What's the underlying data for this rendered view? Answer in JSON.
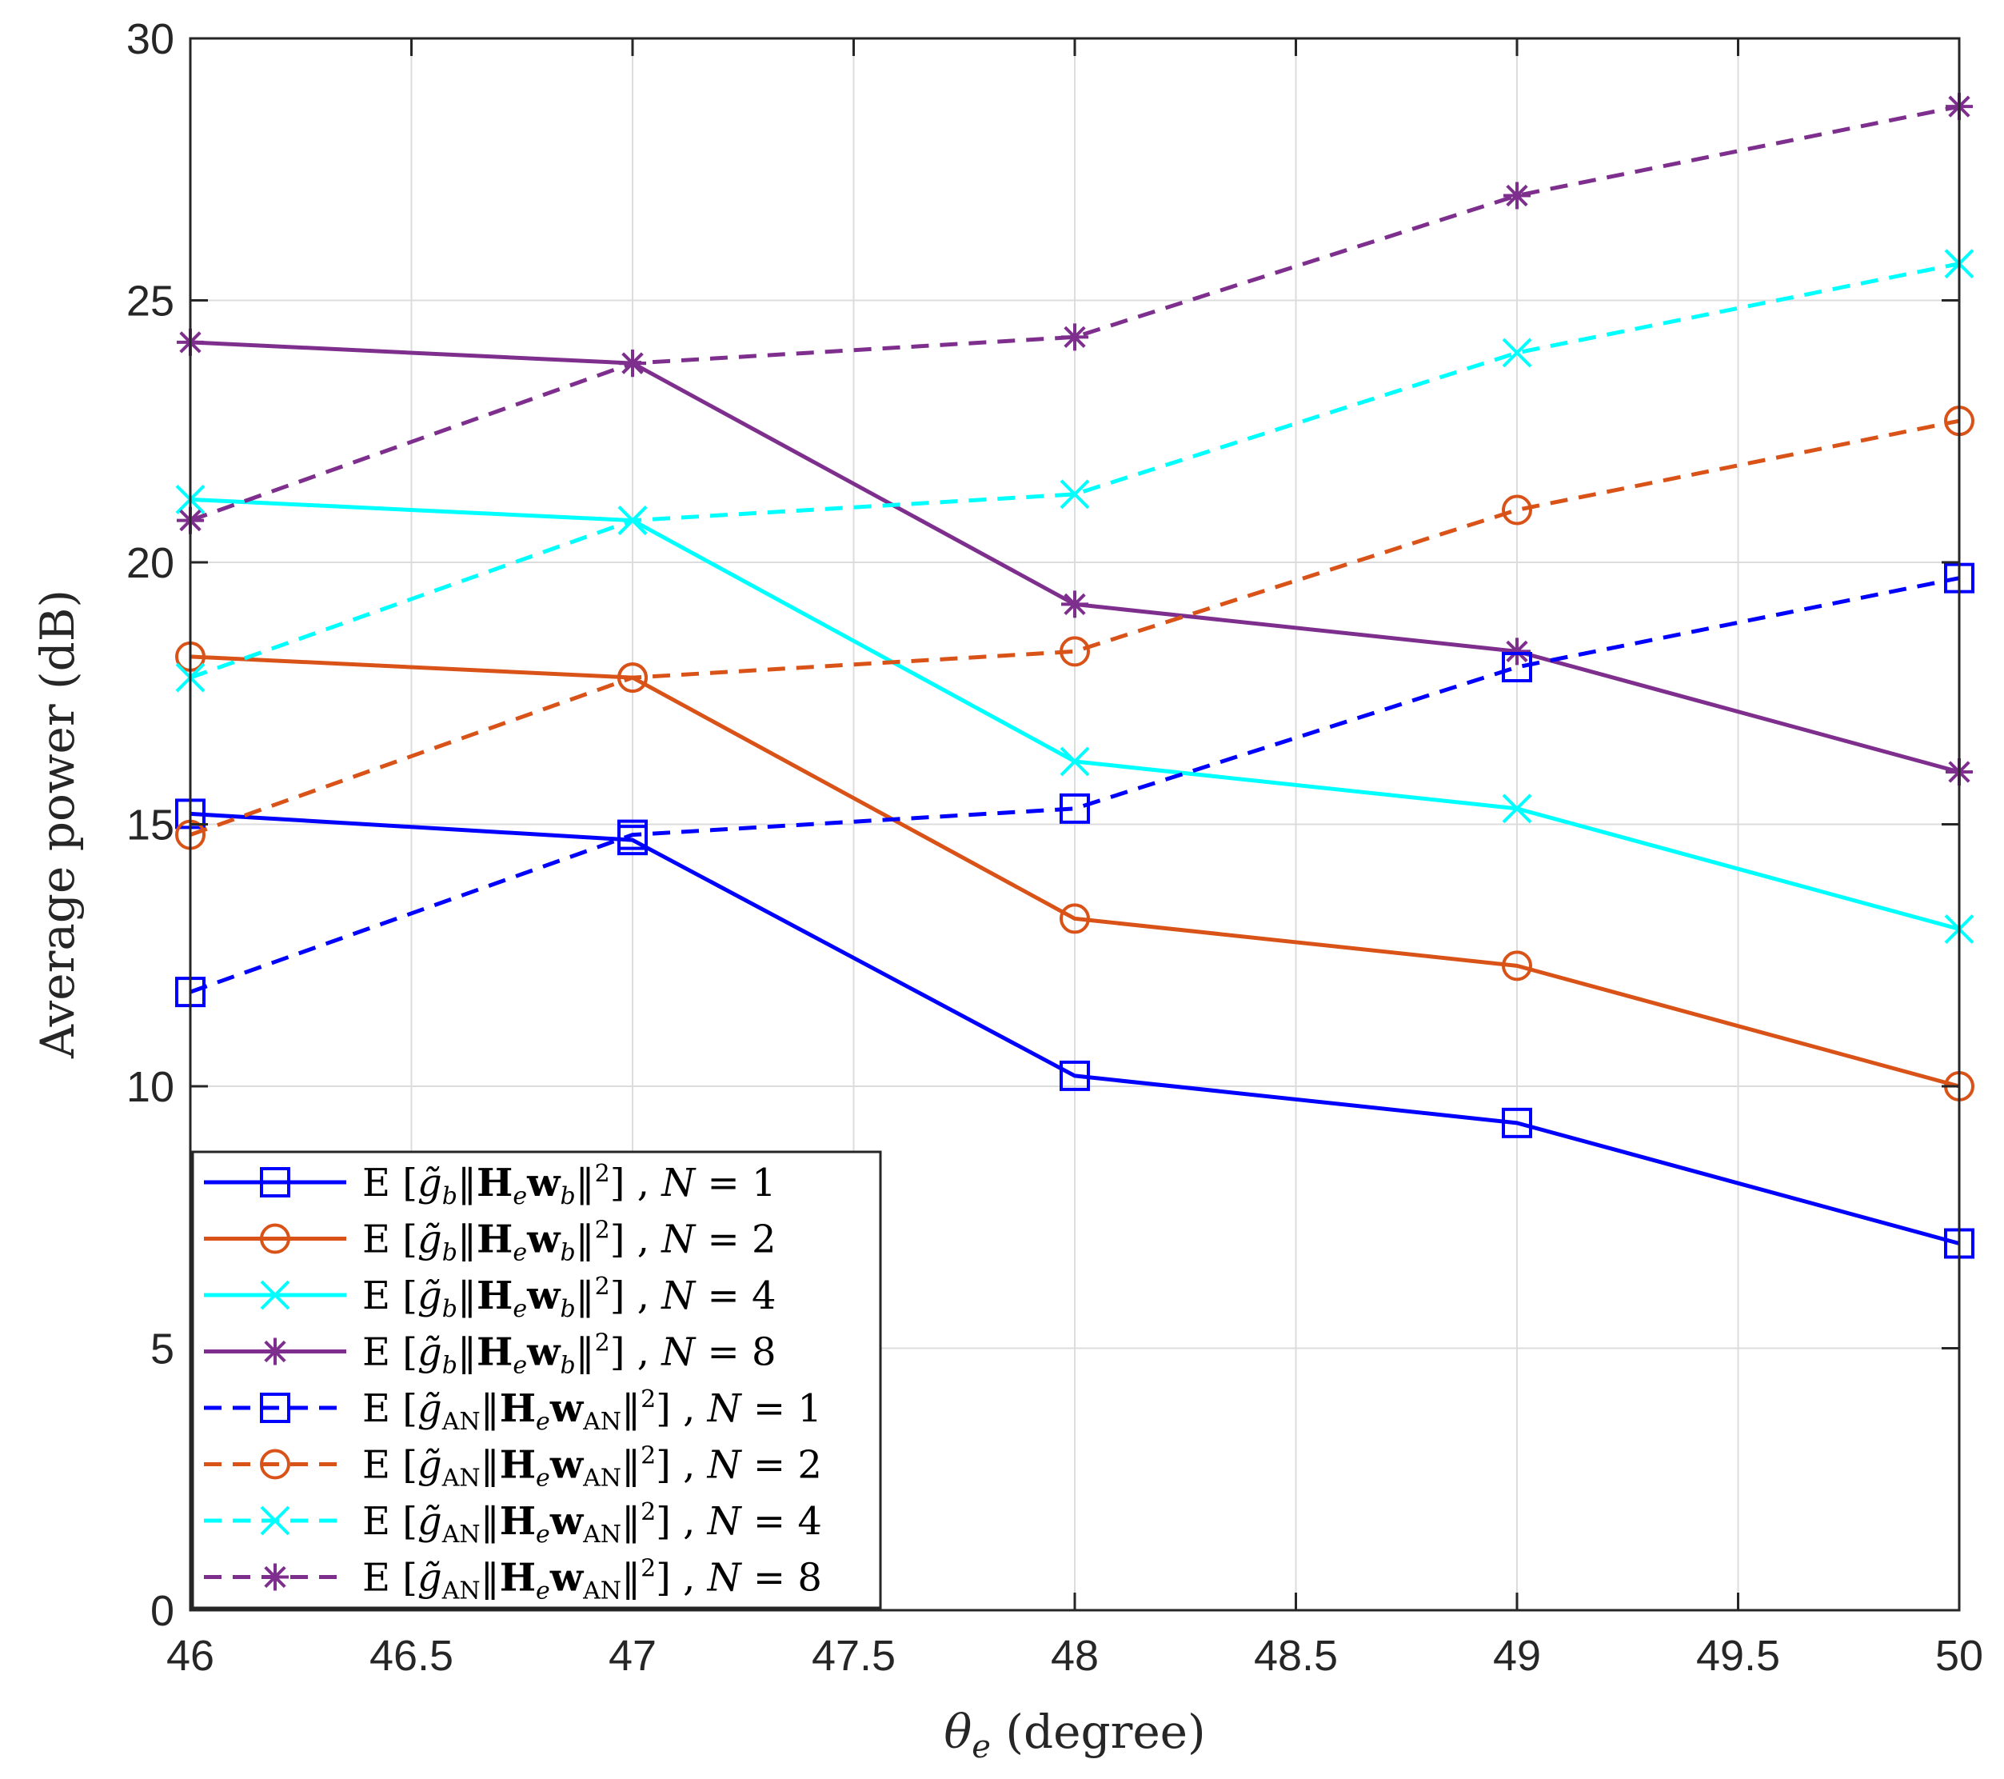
{
  "chart_data": {
    "type": "line",
    "title": "",
    "xlabel_symbol": "θ",
    "xlabel_subscript": "e",
    "xlabel_rest": " (degree)",
    "ylabel": "Average power (dB)",
    "xlim": [
      46,
      50
    ],
    "ylim": [
      0,
      30
    ],
    "x": [
      46,
      47,
      48,
      49,
      50
    ],
    "xticks": [
      46,
      46.5,
      47,
      47.5,
      48,
      48.5,
      49,
      49.5,
      50
    ],
    "xtick_labels": [
      "46",
      "46.5",
      "47",
      "47.5",
      "48",
      "48.5",
      "49",
      "49.5",
      "50"
    ],
    "yticks": [
      0,
      5,
      10,
      15,
      20,
      25,
      30
    ],
    "ytick_labels": [
      "0",
      "5",
      "10",
      "15",
      "20",
      "25",
      "30"
    ],
    "grid": true,
    "legend_position": "bottom-left",
    "series": [
      {
        "name": "E [g̃b‖He wb‖²] , N = 1",
        "sym": "b",
        "n": "1",
        "color": "#0000ff",
        "marker": "square",
        "dash": "solid",
        "values": [
          15.2,
          14.7,
          10.2,
          9.3,
          7.0
        ]
      },
      {
        "name": "E [g̃b‖He wb‖²] , N = 2",
        "sym": "b",
        "n": "2",
        "color": "#d95319",
        "marker": "circle",
        "dash": "solid",
        "values": [
          18.2,
          17.8,
          13.2,
          12.3,
          10.0
        ]
      },
      {
        "name": "E [g̃b‖He wb‖²] , N = 4",
        "sym": "b",
        "n": "4",
        "color": "#00ffff",
        "marker": "x",
        "dash": "solid",
        "values": [
          21.2,
          20.8,
          16.2,
          15.3,
          13.0
        ]
      },
      {
        "name": "E [g̃b‖He wb‖²] , N = 8",
        "sym": "b",
        "n": "8",
        "color": "#7e2f8e",
        "marker": "star",
        "dash": "solid",
        "values": [
          24.2,
          23.8,
          19.2,
          18.3,
          16.0
        ]
      },
      {
        "name": "E [g̃AN‖He wAN‖²] , N = 1",
        "sym": "AN",
        "n": "1",
        "color": "#0000ff",
        "marker": "square",
        "dash": "dashed",
        "values": [
          11.8,
          14.8,
          15.3,
          18.0,
          19.7
        ]
      },
      {
        "name": "E [g̃AN‖He wAN‖²] , N = 2",
        "sym": "AN",
        "n": "2",
        "color": "#d95319",
        "marker": "circle",
        "dash": "dashed",
        "values": [
          14.8,
          17.8,
          18.3,
          21.0,
          22.7
        ]
      },
      {
        "name": "E [g̃AN‖He wAN‖²] , N = 4",
        "sym": "AN",
        "n": "4",
        "color": "#00ffff",
        "marker": "x",
        "dash": "dashed",
        "values": [
          17.8,
          20.8,
          21.3,
          24.0,
          25.7
        ]
      },
      {
        "name": "E [g̃AN‖He wAN‖²] , N = 8",
        "sym": "AN",
        "n": "8",
        "color": "#7e2f8e",
        "marker": "star",
        "dash": "dashed",
        "values": [
          20.8,
          23.8,
          24.3,
          27.0,
          28.7
        ]
      }
    ]
  }
}
